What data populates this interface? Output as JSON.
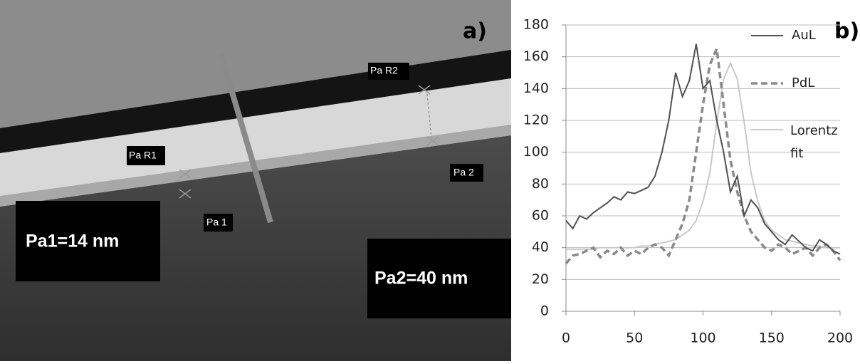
{
  "panel_a": {
    "label": "a)",
    "markers": [
      "Pa R1",
      "Pa R2",
      "Pa 1",
      "Pa 2"
    ],
    "results": [
      "Pa1=14 nm",
      "Pa2=40 nm"
    ]
  },
  "chart_data": {
    "type": "line",
    "label": "b)",
    "x": [
      0,
      5,
      10,
      15,
      20,
      25,
      30,
      35,
      40,
      45,
      50,
      55,
      60,
      65,
      70,
      75,
      80,
      85,
      90,
      95,
      100,
      105,
      110,
      115,
      120,
      125,
      130,
      135,
      140,
      145,
      150,
      155,
      160,
      165,
      170,
      175,
      180,
      185,
      190,
      195,
      200
    ],
    "series": [
      {
        "name": "AuL",
        "color": "#505050",
        "dash": false,
        "values": [
          57,
          52,
          60,
          58,
          62,
          65,
          68,
          72,
          70,
          75,
          74,
          76,
          78,
          85,
          100,
          120,
          150,
          135,
          145,
          168,
          140,
          145,
          120,
          100,
          75,
          85,
          60,
          70,
          65,
          55,
          50,
          45,
          42,
          48,
          44,
          40,
          38,
          45,
          42,
          38,
          36
        ]
      },
      {
        "name": "PdL",
        "color": "#8a8a8a",
        "dash": true,
        "values": [
          30,
          35,
          36,
          38,
          40,
          34,
          38,
          36,
          40,
          35,
          38,
          36,
          40,
          42,
          40,
          35,
          45,
          55,
          70,
          100,
          130,
          155,
          165,
          130,
          95,
          75,
          60,
          50,
          45,
          40,
          38,
          42,
          40,
          36,
          38,
          40,
          35,
          40,
          42,
          38,
          32
        ]
      },
      {
        "name": "Lorentz fit",
        "color": "#c8c8c8",
        "dash": false,
        "values": [
          39,
          39,
          39,
          39,
          39,
          40,
          40,
          40,
          40,
          40,
          40,
          41,
          41,
          42,
          43,
          44,
          45,
          48,
          51,
          57,
          69,
          87,
          119,
          146,
          156,
          146,
          119,
          87,
          69,
          57,
          51,
          48,
          45,
          44,
          43,
          42,
          41,
          41,
          40,
          40,
          40
        ]
      }
    ],
    "xlim": [
      0,
      200
    ],
    "xticks": [
      0,
      50,
      100,
      150,
      200
    ],
    "ylim": [
      0,
      180
    ],
    "yticks": [
      0,
      20,
      40,
      60,
      80,
      100,
      120,
      140,
      160,
      180
    ],
    "grid": true
  }
}
